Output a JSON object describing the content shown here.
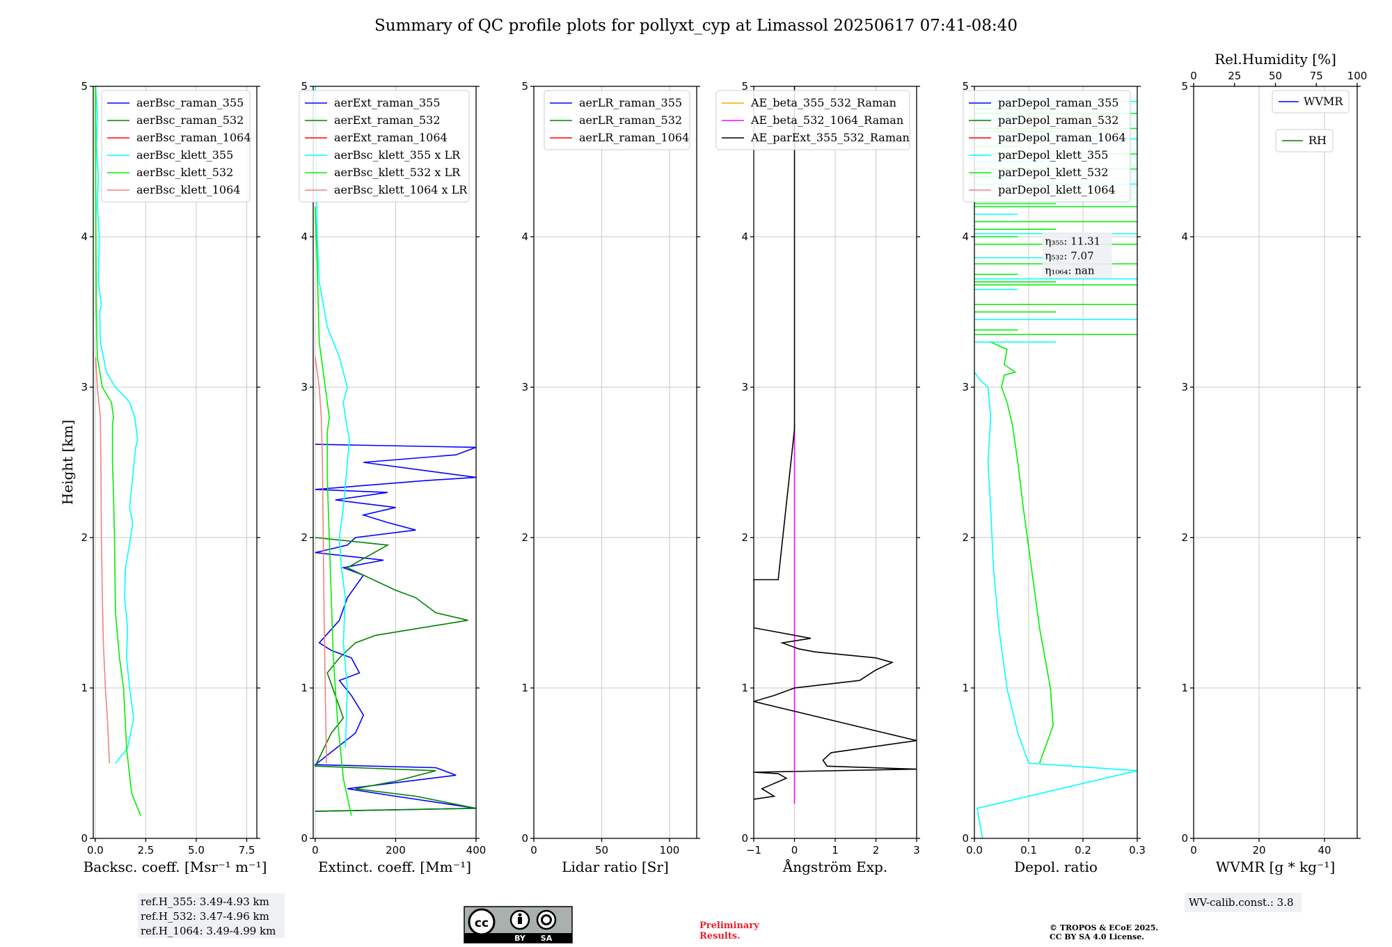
{
  "figure": {
    "title": "Summary of QC profile plots for pollyxt_cyp at Limassol 20250617 07:41-08:40"
  },
  "chart_data": [
    {
      "type": "line",
      "panel": "backscatter",
      "xlabel": "Backsc. coeff. [Msr⁻¹ m⁻¹]",
      "ylabel": "Height [km]",
      "xlim": [
        -0.1,
        8.0
      ],
      "ylim": [
        0,
        5
      ],
      "xticks": [
        "0.0",
        "2.5",
        "5.0",
        "7.5"
      ],
      "xtick_values": [
        0,
        2.5,
        5,
        7.5
      ],
      "yticks": [
        "0",
        "1",
        "2",
        "3",
        "4",
        "5"
      ],
      "grid": true,
      "legend_position": "top-right",
      "series": [
        {
          "name": "aerBsc_raman_355",
          "color": "#0000ff",
          "x": [],
          "y": []
        },
        {
          "name": "aerBsc_raman_532",
          "color": "#008000",
          "x": [],
          "y": []
        },
        {
          "name": "aerBsc_raman_1064",
          "color": "#ff0000",
          "x": [],
          "y": []
        },
        {
          "name": "aerBsc_klett_355",
          "color": "#00ffff",
          "x": [
            1.0,
            1.6,
            1.9,
            1.7,
            1.55,
            1.6,
            1.45,
            1.5,
            1.75,
            1.85,
            1.7,
            1.85,
            2.0,
            2.1,
            1.95,
            1.7,
            1.0,
            0.55,
            0.25,
            0.22,
            0.3,
            0.15,
            0.2,
            0.1,
            0.15,
            0.05,
            0.1,
            0.02
          ],
          "y": [
            0.5,
            0.6,
            0.8,
            1.0,
            1.2,
            1.4,
            1.6,
            1.8,
            2.0,
            2.1,
            2.2,
            2.4,
            2.6,
            2.65,
            2.8,
            2.9,
            3.0,
            3.1,
            3.3,
            3.5,
            3.55,
            3.7,
            4.0,
            4.2,
            4.4,
            4.6,
            4.8,
            5.0
          ]
        },
        {
          "name": "aerBsc_klett_532",
          "color": "#00ee00",
          "x": [
            2.25,
            1.8,
            1.55,
            1.4,
            1.2,
            1.0,
            0.95,
            0.9,
            0.85,
            0.85,
            0.9,
            0.8,
            0.35,
            0.1,
            0.05,
            0.03,
            0.02,
            0.01
          ],
          "y": [
            0.15,
            0.3,
            0.6,
            1.0,
            1.2,
            1.5,
            2.0,
            2.3,
            2.5,
            2.75,
            2.8,
            2.9,
            3.0,
            3.2,
            3.5,
            4.0,
            4.5,
            5.0
          ]
        },
        {
          "name": "aerBsc_klett_1064",
          "color": "#f08080",
          "x": [
            0.7,
            0.6,
            0.5,
            0.4,
            0.35,
            0.3,
            0.28,
            0.25,
            0.1,
            0.02
          ],
          "y": [
            0.5,
            0.8,
            1.0,
            1.3,
            1.6,
            2.0,
            2.5,
            2.8,
            3.0,
            3.2
          ]
        }
      ],
      "notes": [
        "ref.H_355: 3.49-4.93 km",
        "ref.H_532: 3.47-4.96 km",
        "ref.H_1064: 3.49-4.99 km"
      ]
    },
    {
      "type": "line",
      "panel": "extinction",
      "xlabel": "Extinct. coeff. [Mm⁻¹]",
      "xlim": [
        -5,
        400
      ],
      "ylim": [
        0,
        5
      ],
      "xticks": [
        "0",
        "200",
        "400"
      ],
      "xtick_values": [
        0,
        200,
        400
      ],
      "yticks": [
        "0",
        "1",
        "2",
        "3",
        "4",
        "5"
      ],
      "grid": true,
      "legend_position": "top-right",
      "series": [
        {
          "name": "aerExt_raman_355",
          "color": "#0000ff",
          "x": [
            0,
            400,
            200,
            80,
            350,
            300,
            0,
            100,
            120,
            90,
            60,
            110,
            90,
            40,
            10,
            60,
            80,
            120,
            70,
            170,
            0,
            80,
            100,
            250,
            180,
            120,
            200,
            50,
            180,
            0,
            280,
            400,
            120,
            350,
            400,
            0
          ],
          "y": [
            0.18,
            0.2,
            0.28,
            0.33,
            0.42,
            0.47,
            0.49,
            0.7,
            0.82,
            0.95,
            1.05,
            1.1,
            1.2,
            1.25,
            1.3,
            1.45,
            1.6,
            1.75,
            1.8,
            1.85,
            1.9,
            1.95,
            2.0,
            2.05,
            2.1,
            2.15,
            2.2,
            2.25,
            2.3,
            2.32,
            2.38,
            2.4,
            2.5,
            2.55,
            2.6,
            2.62
          ]
        },
        {
          "name": "aerExt_raman_532",
          "color": "#008000",
          "x": [
            0,
            400,
            250,
            100,
            200,
            300,
            0,
            40,
            70,
            50,
            30,
            60,
            100,
            150,
            380,
            300,
            250,
            200,
            80,
            180,
            0
          ],
          "y": [
            0.18,
            0.2,
            0.28,
            0.33,
            0.38,
            0.45,
            0.48,
            0.7,
            0.8,
            0.95,
            1.1,
            1.2,
            1.3,
            1.35,
            1.45,
            1.5,
            1.6,
            1.65,
            1.8,
            1.95,
            2.0
          ]
        },
        {
          "name": "aerExt_raman_1064",
          "color": "#ff0000",
          "x": [],
          "y": []
        },
        {
          "name": "aerBsc_klett_355 x LR",
          "color": "#00ffff",
          "x": [
            75,
            80,
            70,
            75,
            65,
            60,
            70,
            80,
            85,
            75,
            70,
            80,
            70,
            60,
            30,
            10,
            5,
            0
          ],
          "y": [
            0.6,
            1.0,
            1.3,
            1.6,
            1.8,
            2.0,
            2.2,
            2.5,
            2.65,
            2.8,
            2.9,
            3.0,
            3.1,
            3.2,
            3.4,
            3.7,
            4.0,
            5.0
          ]
        },
        {
          "name": "aerBsc_klett_532 x LR",
          "color": "#00ee00",
          "x": [
            90,
            70,
            55,
            45,
            40,
            35,
            30,
            30,
            35,
            25,
            10,
            5,
            0
          ],
          "y": [
            0.15,
            0.4,
            0.8,
            1.2,
            1.6,
            2.0,
            2.4,
            2.7,
            2.8,
            3.0,
            3.3,
            3.8,
            4.2
          ]
        },
        {
          "name": "aerBsc_klett_1064 x LR",
          "color": "#f08080",
          "x": [
            28,
            25,
            22,
            20,
            18,
            15,
            10,
            0
          ],
          "y": [
            0.5,
            1.0,
            1.5,
            2.0,
            2.5,
            2.8,
            3.0,
            3.2
          ]
        }
      ]
    },
    {
      "type": "line",
      "panel": "lidar_ratio",
      "xlabel": "Lidar ratio [Sr]",
      "xlim": [
        0,
        120
      ],
      "ylim": [
        0,
        5
      ],
      "xticks": [
        "0",
        "50",
        "100"
      ],
      "xtick_values": [
        0,
        50,
        100
      ],
      "yticks": [
        "0",
        "1",
        "2",
        "3",
        "4",
        "5"
      ],
      "grid": true,
      "legend_position": "top-right",
      "series": [
        {
          "name": "aerLR_raman_355",
          "color": "#0000ff",
          "x": [],
          "y": []
        },
        {
          "name": "aerLR_raman_532",
          "color": "#008000",
          "x": [],
          "y": []
        },
        {
          "name": "aerLR_raman_1064",
          "color": "#ff0000",
          "x": [],
          "y": []
        }
      ]
    },
    {
      "type": "line",
      "panel": "angstrom",
      "xlabel": "Ångström Exp.",
      "xlim": [
        -1,
        3
      ],
      "ylim": [
        0,
        5
      ],
      "xticks": [
        "−1",
        "0",
        "1",
        "2",
        "3"
      ],
      "xtick_values": [
        -1,
        0,
        1,
        2,
        3
      ],
      "yticks": [
        "0",
        "1",
        "2",
        "3",
        "4",
        "5"
      ],
      "grid": true,
      "legend_position": "top-right",
      "series": [
        {
          "name": "AE_beta_355_532_Raman",
          "color": "#ffa500",
          "x": [],
          "y": []
        },
        {
          "name": "AE_beta_532_1064_Raman",
          "color": "#ff00ff",
          "x": [
            0,
            0
          ],
          "y": [
            0.23,
            2.75
          ]
        },
        {
          "name": "AE_parExt_355_532_Raman",
          "color": "#000000",
          "x": [
            -1,
            -0.5,
            -0.8,
            -0.2,
            -0.4,
            -1,
            3,
            0.8,
            0.7,
            0.9,
            3,
            -1,
            -0.5,
            0,
            1.6,
            2.0,
            2.4,
            2.0,
            0.5,
            0.1,
            -0.3,
            0.4,
            -1,
            -1,
            -0.4,
            0,
            0,
            0
          ],
          "y": [
            0.26,
            0.28,
            0.33,
            0.4,
            0.43,
            0.44,
            0.46,
            0.48,
            0.52,
            0.57,
            0.65,
            0.91,
            0.95,
            1.0,
            1.05,
            1.12,
            1.17,
            1.2,
            1.24,
            1.26,
            1.3,
            1.33,
            1.4,
            1.72,
            1.72,
            2.72,
            3.5,
            5.0
          ]
        }
      ]
    },
    {
      "type": "line",
      "panel": "depolarization",
      "xlabel": "Depol. ratio",
      "xlim": [
        0,
        0.3
      ],
      "ylim": [
        0,
        5
      ],
      "xticks": [
        "0.0",
        "0.1",
        "0.2",
        "0.3"
      ],
      "xtick_values": [
        0,
        0.1,
        0.2,
        0.3
      ],
      "yticks": [
        "0",
        "1",
        "2",
        "3",
        "4",
        "5"
      ],
      "grid": true,
      "legend_position": "top-right",
      "series": [
        {
          "name": "parDepol_raman_355",
          "color": "#0000ff",
          "x": [],
          "y": []
        },
        {
          "name": "parDepol_raman_532",
          "color": "#008000",
          "x": [],
          "y": []
        },
        {
          "name": "parDepol_raman_1064",
          "color": "#ff0000",
          "x": [],
          "y": []
        },
        {
          "name": "parDepol_klett_355",
          "color": "#00ffff",
          "x": [
            0.015,
            0.005,
            0.3,
            0.1,
            0.08,
            0.06,
            0.045,
            0.035,
            0.03,
            0.025,
            0.03,
            0.025,
            0.01,
            0.0
          ],
          "y": [
            0.0,
            0.2,
            0.45,
            0.5,
            0.7,
            1.0,
            1.4,
            1.8,
            2.2,
            2.5,
            2.8,
            3.0,
            3.05,
            3.1
          ]
        },
        {
          "name": "parDepol_klett_532",
          "color": "#00ee00",
          "x": [
            0.12,
            0.145,
            0.14,
            0.12,
            0.105,
            0.09,
            0.08,
            0.07,
            0.06,
            0.05,
            0.055,
            0.075,
            0.055,
            0.06,
            0.03
          ],
          "y": [
            0.5,
            0.75,
            1.0,
            1.4,
            1.8,
            2.2,
            2.5,
            2.75,
            2.9,
            3.0,
            3.08,
            3.1,
            3.15,
            3.25,
            3.3
          ]
        },
        {
          "name": "parDepol_klett_1064",
          "color": "#f08080",
          "x": [],
          "y": []
        }
      ],
      "annotations": [
        "η₃₅₅: 11.31",
        "η₅₃₂: 7.07",
        "η₁₀₆₄: nan"
      ]
    },
    {
      "type": "line",
      "panel": "water_vapor",
      "xlabel": "WVMR [g * kg⁻¹]",
      "xlim": [
        0,
        50
      ],
      "ylim": [
        0,
        5
      ],
      "xticks": [
        "0",
        "20",
        "40"
      ],
      "xtick_values": [
        0,
        20,
        40
      ],
      "top_xlabel": "Rel.Humidity [%]",
      "top_xlim": [
        0,
        100
      ],
      "top_xticks": [
        "0",
        "25",
        "50",
        "75",
        "100"
      ],
      "top_xtick_values": [
        0,
        25,
        50,
        75,
        100
      ],
      "yticks": [
        "0",
        "1",
        "2",
        "3",
        "4",
        "5"
      ],
      "grid": true,
      "legend_position": "top-right",
      "series": [
        {
          "name": "WVMR",
          "color": "#0000ff",
          "x": [],
          "y": []
        },
        {
          "name": "RH",
          "color": "#008000",
          "x": [],
          "y": []
        }
      ],
      "notes": [
        "WV-calib.const.: 3.8"
      ]
    }
  ],
  "footer": {
    "license_badge": {
      "cc": "cc",
      "by": "BY",
      "sa": "SA"
    },
    "preliminary": [
      "Preliminary",
      "Results."
    ],
    "copyright": [
      "© TROPOS & ECoE 2025.",
      "CC BY SA 4.0 License."
    ]
  }
}
